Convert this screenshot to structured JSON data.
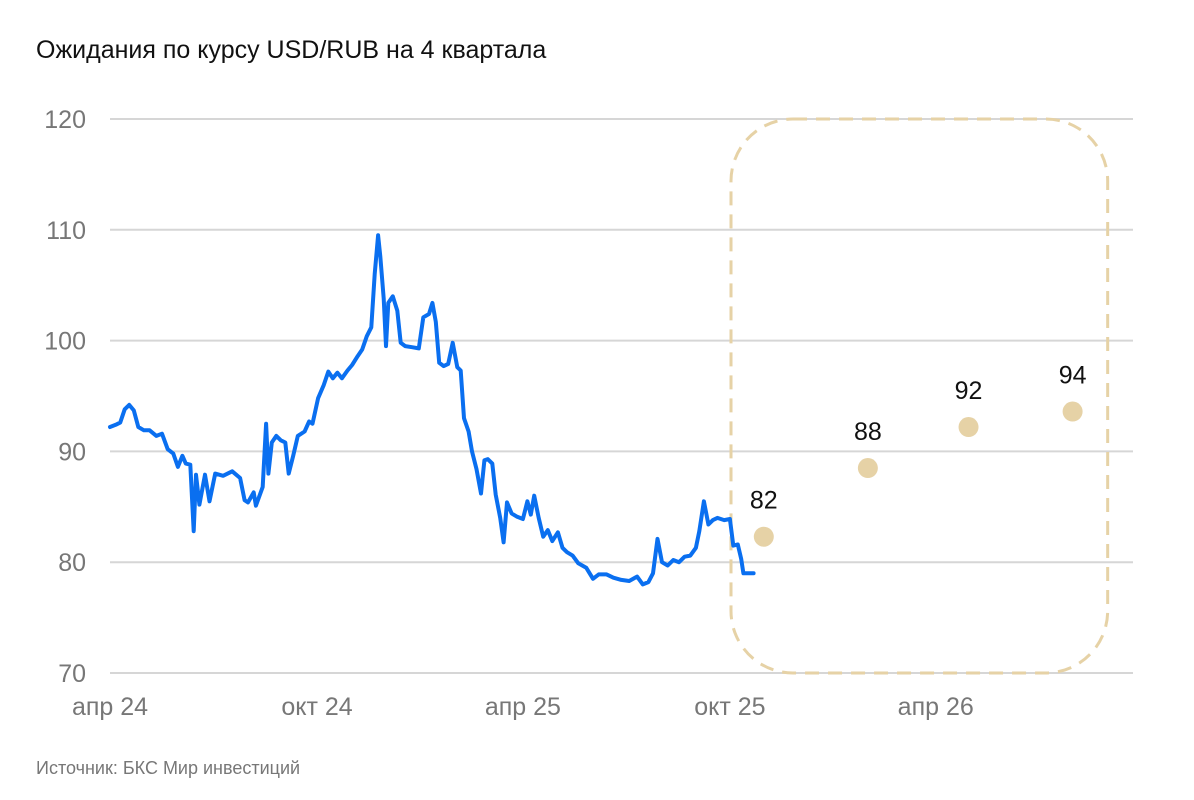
{
  "title": "Ожидания по курсу USD/RUB на 4 квартала",
  "source": "Источник: БКС Мир инвестиций",
  "colors": {
    "history": "#0a6ff0",
    "forecast": "#e6d2a6",
    "grid": "#d6d6d6",
    "tick_text": "#777777"
  },
  "chart_data": {
    "type": "line",
    "title": "Ожидания по курсу USD/RUB на 4 квартала",
    "ylim": [
      70,
      120
    ],
    "y_ticks": [
      70,
      80,
      90,
      100,
      110,
      120
    ],
    "grid": true,
    "x_ticks": [
      {
        "label": "апр 24",
        "date": "2024-04-01"
      },
      {
        "label": "окт 24",
        "date": "2024-10-01"
      },
      {
        "label": "апр 25",
        "date": "2025-04-01"
      },
      {
        "label": "окт 25",
        "date": "2025-10-01"
      },
      {
        "label": "апр 26",
        "date": "2026-04-01"
      }
    ],
    "series": [
      {
        "kind": "line",
        "color": "#0a6ff0",
        "points": [
          [
            "2024-04-01",
            92.2
          ],
          [
            "2024-04-06",
            92.4
          ],
          [
            "2024-04-10",
            92.6
          ],
          [
            "2024-04-14",
            93.8
          ],
          [
            "2024-04-18",
            94.2
          ],
          [
            "2024-04-22",
            93.7
          ],
          [
            "2024-04-26",
            92.2
          ],
          [
            "2024-05-01",
            91.9
          ],
          [
            "2024-05-06",
            91.9
          ],
          [
            "2024-05-12",
            91.4
          ],
          [
            "2024-05-17",
            91.6
          ],
          [
            "2024-05-22",
            90.2
          ],
          [
            "2024-05-27",
            89.8
          ],
          [
            "2024-05-31",
            88.6
          ],
          [
            "2024-06-04",
            89.6
          ],
          [
            "2024-06-07",
            88.9
          ],
          [
            "2024-06-11",
            88.8
          ],
          [
            "2024-06-14",
            82.8
          ],
          [
            "2024-06-16",
            87.9
          ],
          [
            "2024-06-19",
            85.2
          ],
          [
            "2024-06-24",
            87.9
          ],
          [
            "2024-06-28",
            85.5
          ],
          [
            "2024-07-03",
            88.0
          ],
          [
            "2024-07-10",
            87.8
          ],
          [
            "2024-07-18",
            88.2
          ],
          [
            "2024-07-25",
            87.6
          ],
          [
            "2024-07-29",
            85.6
          ],
          [
            "2024-08-01",
            85.4
          ],
          [
            "2024-08-06",
            86.3
          ],
          [
            "2024-08-08",
            85.1
          ],
          [
            "2024-08-14",
            86.8
          ],
          [
            "2024-08-17",
            92.5
          ],
          [
            "2024-08-19",
            88.0
          ],
          [
            "2024-08-22",
            90.8
          ],
          [
            "2024-08-26",
            91.4
          ],
          [
            "2024-08-30",
            91.0
          ],
          [
            "2024-09-03",
            90.8
          ],
          [
            "2024-09-06",
            88.0
          ],
          [
            "2024-09-10",
            89.6
          ],
          [
            "2024-09-14",
            91.4
          ],
          [
            "2024-09-20",
            91.8
          ],
          [
            "2024-09-24",
            92.7
          ],
          [
            "2024-09-27",
            92.5
          ],
          [
            "2024-10-02",
            94.8
          ],
          [
            "2024-10-07",
            96.0
          ],
          [
            "2024-10-11",
            97.2
          ],
          [
            "2024-10-15",
            96.6
          ],
          [
            "2024-10-19",
            97.1
          ],
          [
            "2024-10-23",
            96.6
          ],
          [
            "2024-10-28",
            97.3
          ],
          [
            "2024-11-01",
            97.8
          ],
          [
            "2024-11-06",
            98.6
          ],
          [
            "2024-11-10",
            99.2
          ],
          [
            "2024-11-14",
            100.4
          ],
          [
            "2024-11-18",
            101.2
          ],
          [
            "2024-11-21",
            106.0
          ],
          [
            "2024-11-24",
            109.5
          ],
          [
            "2024-11-26",
            107.6
          ],
          [
            "2024-11-29",
            103.8
          ],
          [
            "2024-12-01",
            99.5
          ],
          [
            "2024-12-03",
            103.4
          ],
          [
            "2024-12-07",
            104.0
          ],
          [
            "2024-12-11",
            102.7
          ],
          [
            "2024-12-14",
            99.8
          ],
          [
            "2024-12-18",
            99.5
          ],
          [
            "2024-12-24",
            99.4
          ],
          [
            "2024-12-30",
            99.3
          ],
          [
            "2025-01-03",
            102.1
          ],
          [
            "2025-01-08",
            102.4
          ],
          [
            "2025-01-11",
            103.4
          ],
          [
            "2025-01-14",
            101.7
          ],
          [
            "2025-01-17",
            98.0
          ],
          [
            "2025-01-21",
            97.7
          ],
          [
            "2025-01-25",
            97.9
          ],
          [
            "2025-01-29",
            99.8
          ],
          [
            "2025-02-02",
            97.6
          ],
          [
            "2025-02-05",
            97.3
          ],
          [
            "2025-02-08",
            93.0
          ],
          [
            "2025-02-12",
            91.8
          ],
          [
            "2025-02-15",
            90.0
          ],
          [
            "2025-02-19",
            88.4
          ],
          [
            "2025-02-23",
            86.2
          ],
          [
            "2025-02-26",
            89.2
          ],
          [
            "2025-03-01",
            89.3
          ],
          [
            "2025-03-05",
            88.9
          ],
          [
            "2025-03-08",
            86.1
          ],
          [
            "2025-03-12",
            84.0
          ],
          [
            "2025-03-15",
            81.8
          ],
          [
            "2025-03-18",
            85.4
          ],
          [
            "2025-03-22",
            84.4
          ],
          [
            "2025-03-27",
            84.1
          ],
          [
            "2025-04-01",
            83.9
          ],
          [
            "2025-04-05",
            85.5
          ],
          [
            "2025-04-08",
            84.3
          ],
          [
            "2025-04-11",
            86.0
          ],
          [
            "2025-04-15",
            84.0
          ],
          [
            "2025-04-19",
            82.3
          ],
          [
            "2025-04-23",
            82.9
          ],
          [
            "2025-04-27",
            81.9
          ],
          [
            "2025-05-02",
            82.7
          ],
          [
            "2025-05-06",
            81.3
          ],
          [
            "2025-05-10",
            80.9
          ],
          [
            "2025-05-15",
            80.6
          ],
          [
            "2025-05-20",
            79.9
          ],
          [
            "2025-05-27",
            79.5
          ],
          [
            "2025-06-02",
            78.5
          ],
          [
            "2025-06-07",
            78.9
          ],
          [
            "2025-06-14",
            78.9
          ],
          [
            "2025-06-20",
            78.6
          ],
          [
            "2025-06-27",
            78.4
          ],
          [
            "2025-07-04",
            78.3
          ],
          [
            "2025-07-11",
            78.7
          ],
          [
            "2025-07-16",
            78.0
          ],
          [
            "2025-07-21",
            78.2
          ],
          [
            "2025-07-25",
            79.0
          ],
          [
            "2025-07-29",
            82.1
          ],
          [
            "2025-08-02",
            80.0
          ],
          [
            "2025-08-07",
            79.7
          ],
          [
            "2025-08-12",
            80.2
          ],
          [
            "2025-08-17",
            80.0
          ],
          [
            "2025-08-22",
            80.5
          ],
          [
            "2025-08-27",
            80.6
          ],
          [
            "2025-09-01",
            81.3
          ],
          [
            "2025-09-04",
            82.8
          ],
          [
            "2025-09-08",
            85.5
          ],
          [
            "2025-09-12",
            83.4
          ],
          [
            "2025-09-16",
            83.8
          ],
          [
            "2025-09-20",
            84.0
          ],
          [
            "2025-09-26",
            83.8
          ],
          [
            "2025-10-01",
            83.9
          ],
          [
            "2025-10-04",
            81.5
          ],
          [
            "2025-10-08",
            81.6
          ],
          [
            "2025-10-11",
            80.3
          ],
          [
            "2025-10-13",
            79.0
          ],
          [
            "2025-10-17",
            79.0
          ],
          [
            "2025-10-22",
            79.0
          ]
        ]
      },
      {
        "kind": "scatter",
        "color": "#e6d2a6",
        "points": [
          {
            "date": "2025-10-31",
            "value": 82.3,
            "label": "82"
          },
          {
            "date": "2026-01-31",
            "value": 88.5,
            "label": "88"
          },
          {
            "date": "2026-04-30",
            "value": 92.2,
            "label": "92"
          },
          {
            "date": "2026-07-31",
            "value": 93.6,
            "label": "94"
          }
        ]
      }
    ],
    "annotations": [
      {
        "type": "rounded-dashed-box",
        "label": "",
        "x_from": "2025-10-02",
        "x_to": "2026-08-31",
        "y_from": 70,
        "y_to": 120
      }
    ]
  }
}
